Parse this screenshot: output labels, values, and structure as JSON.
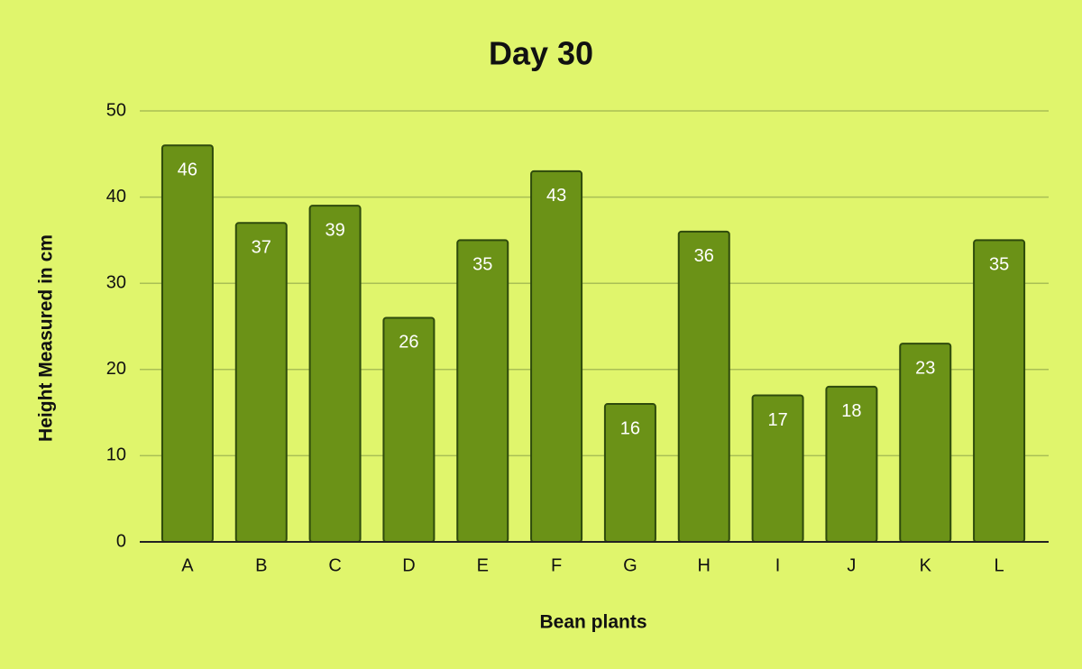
{
  "chart_data": {
    "type": "bar",
    "title": "Day 30",
    "x_label": "Bean plants",
    "y_label": "Height Measured in cm",
    "categories": [
      "A",
      "B",
      "C",
      "D",
      "E",
      "F",
      "G",
      "H",
      "I",
      "J",
      "K",
      "L"
    ],
    "values": [
      46,
      37,
      39,
      26,
      35,
      43,
      16,
      36,
      17,
      18,
      23,
      35
    ],
    "color": "#6b9217",
    "background": "#e0f56c",
    "ylim": [
      0,
      50
    ],
    "yticks": [
      0,
      10,
      20,
      30,
      40,
      50
    ],
    "grid": true,
    "data_labels": true
  }
}
